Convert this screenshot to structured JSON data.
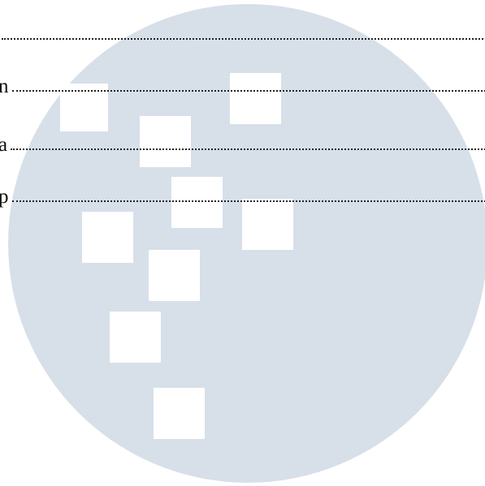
{
  "watermark": {
    "circle_color": "#d7e0e9",
    "square_color": "#ffffff"
  },
  "rows": [
    {
      "letter": ""
    },
    {
      "letter": "n"
    },
    {
      "letter": "a"
    },
    {
      "letter": "p"
    }
  ]
}
